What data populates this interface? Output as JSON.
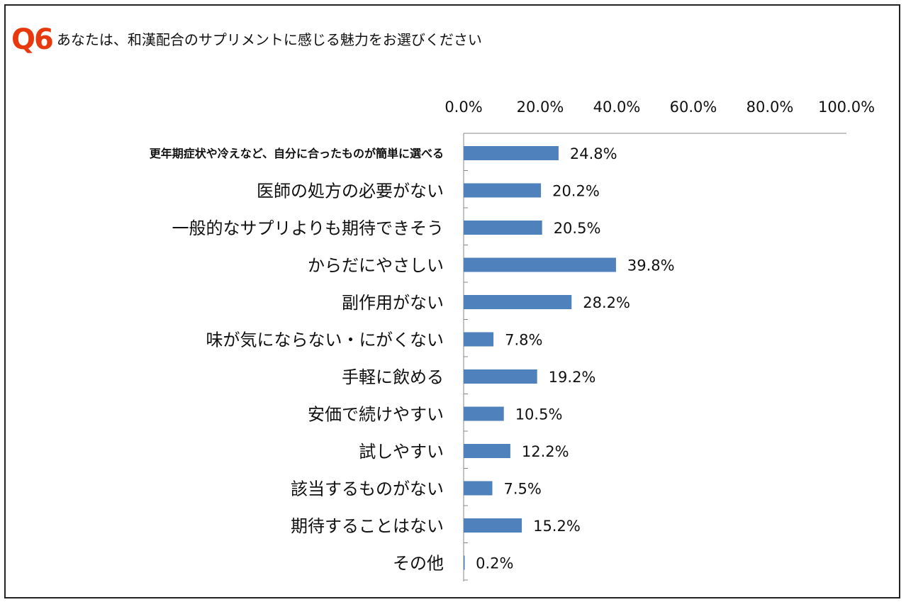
{
  "question": {
    "number": "Q6",
    "text": "あなたは、和漢配合のサプリメントに感じる魅力をお選びください"
  },
  "colors": {
    "bar": "#4f81bd",
    "badge": "#e8380d"
  },
  "chart_data": {
    "type": "bar",
    "orientation": "horizontal",
    "title": "",
    "xlabel": "",
    "ylabel": "",
    "xlim": [
      0,
      100
    ],
    "x_ticks": [
      "0.0%",
      "20.0%",
      "40.0%",
      "60.0%",
      "80.0%",
      "100.0%"
    ],
    "x_axis_position": "top",
    "grid": false,
    "legend": "none",
    "categories": [
      "更年期症状や冷えなど、自分に合ったものが簡単に選べる",
      "医師の処方の必要がない",
      "一般的なサプリよりも期待できそう",
      "からだにやさしい",
      "副作用がない",
      "味が気にならない・にがくない",
      "手軽に飲める",
      "安価で続けやすい",
      "試しやすい",
      "該当するものがない",
      "期待することはない",
      "その他"
    ],
    "values": [
      24.8,
      20.2,
      20.5,
      39.8,
      28.2,
      7.8,
      19.2,
      10.5,
      12.2,
      7.5,
      15.2,
      0.2
    ],
    "data_labels": [
      "24.8%",
      "20.2%",
      "20.5%",
      "39.8%",
      "28.2%",
      "7.8%",
      "19.2%",
      "10.5%",
      "12.2%",
      "7.5%",
      "15.2%",
      "0.2%"
    ]
  }
}
